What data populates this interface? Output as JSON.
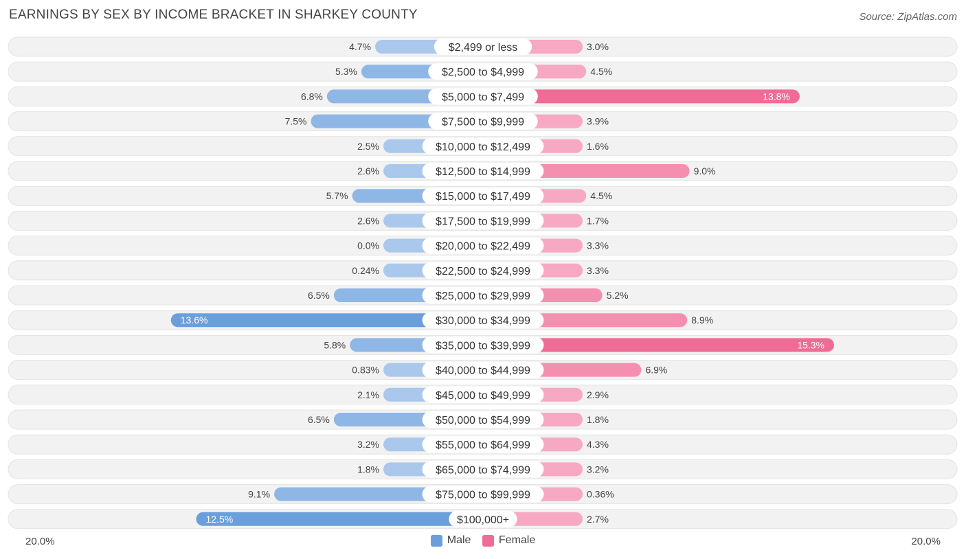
{
  "title": "EARNINGS BY SEX BY INCOME BRACKET IN SHARKEY COUNTY",
  "source": "Source: ZipAtlas.com",
  "colors": {
    "male": "#6a9fdc",
    "male_light": "#a9c8ec",
    "female": "#f06b96",
    "female_light": "#f7a8c2",
    "row_bg": "#f1f1f1"
  },
  "axis": {
    "left_label": "20.0%",
    "right_label": "20.0%"
  },
  "legend": {
    "male": "Male",
    "female": "Female"
  },
  "chart_data": {
    "type": "bar",
    "orientation": "horizontal-diverging",
    "title": "EARNINGS BY SEX BY INCOME BRACKET IN SHARKEY COUNTY",
    "xlim": [
      -20,
      20
    ],
    "categories": [
      "$2,499 or less",
      "$2,500 to $4,999",
      "$5,000 to $7,499",
      "$7,500 to $9,999",
      "$10,000 to $12,499",
      "$12,500 to $14,999",
      "$15,000 to $17,499",
      "$17,500 to $19,999",
      "$20,000 to $22,499",
      "$22,500 to $24,999",
      "$25,000 to $29,999",
      "$30,000 to $34,999",
      "$35,000 to $39,999",
      "$40,000 to $44,999",
      "$45,000 to $49,999",
      "$50,000 to $54,999",
      "$55,000 to $64,999",
      "$65,000 to $74,999",
      "$75,000 to $99,999",
      "$100,000+"
    ],
    "series": [
      {
        "name": "Male",
        "values": [
          4.7,
          5.3,
          6.8,
          7.5,
          2.5,
          2.6,
          5.7,
          2.6,
          0.0,
          0.24,
          6.5,
          13.6,
          5.8,
          0.83,
          2.1,
          6.5,
          3.2,
          1.8,
          9.1,
          12.5
        ],
        "labels": [
          "4.7%",
          "5.3%",
          "6.8%",
          "7.5%",
          "2.5%",
          "2.6%",
          "5.7%",
          "2.6%",
          "0.0%",
          "0.24%",
          "6.5%",
          "13.6%",
          "5.8%",
          "0.83%",
          "2.1%",
          "6.5%",
          "3.2%",
          "1.8%",
          "9.1%",
          "12.5%"
        ]
      },
      {
        "name": "Female",
        "values": [
          3.0,
          4.5,
          13.8,
          3.9,
          1.6,
          9.0,
          4.5,
          1.7,
          3.3,
          3.3,
          5.2,
          8.9,
          15.3,
          6.9,
          2.9,
          1.8,
          4.3,
          3.2,
          0.36,
          2.7
        ],
        "labels": [
          "3.0%",
          "4.5%",
          "13.8%",
          "3.9%",
          "1.6%",
          "9.0%",
          "4.5%",
          "1.7%",
          "3.3%",
          "3.3%",
          "5.2%",
          "8.9%",
          "15.3%",
          "6.9%",
          "2.9%",
          "1.8%",
          "4.3%",
          "3.2%",
          "0.36%",
          "2.7%"
        ]
      }
    ]
  }
}
